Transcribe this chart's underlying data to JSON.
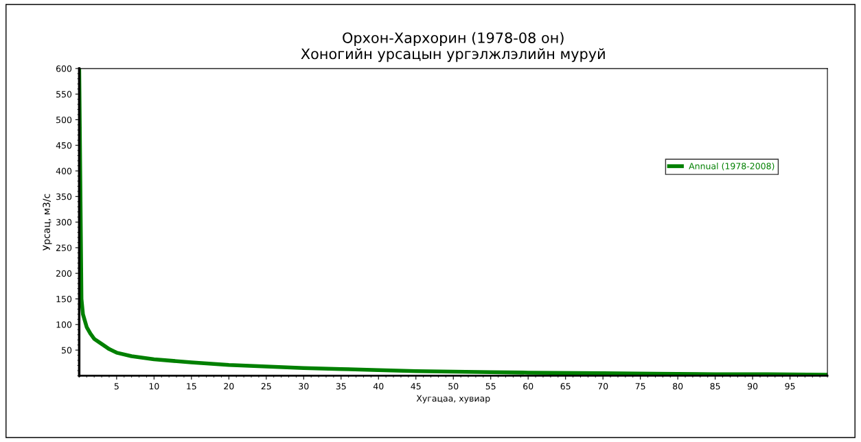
{
  "chart_data": {
    "type": "line",
    "title": "Орхон-Хархорин (1978-08 он)\nХоногийн урсацын ургэлжлэлийн муруй",
    "xlabel": "Хугацаа, хувиар",
    "ylabel": "Урсац, м3/с",
    "series": [
      {
        "name": "Annual (1978-2008)",
        "color": "#008000",
        "x": [
          0,
          0.3,
          0.5,
          1,
          1.5,
          2,
          3,
          4,
          5,
          7,
          10,
          15,
          20,
          25,
          30,
          35,
          40,
          45,
          50,
          55,
          60,
          70,
          77,
          85,
          92,
          100
        ],
        "values": [
          600,
          150,
          120,
          95,
          82,
          72,
          62,
          52,
          45,
          38,
          32,
          26,
          21,
          18,
          15,
          13,
          11,
          9,
          8,
          7,
          6,
          5,
          4,
          3,
          3,
          2
        ]
      }
    ],
    "xlim": [
      0,
      100
    ],
    "xticks": [
      5,
      10,
      15,
      20,
      25,
      30,
      35,
      40,
      45,
      50,
      55,
      60,
      65,
      70,
      75,
      80,
      85,
      90,
      95
    ],
    "ylim": [
      0,
      600
    ],
    "yticks": [
      50,
      100,
      150,
      200,
      250,
      300,
      350,
      400,
      450,
      500,
      550,
      600
    ],
    "grid": false,
    "legend": "right",
    "marker": "none",
    "line_style": "solid"
  }
}
